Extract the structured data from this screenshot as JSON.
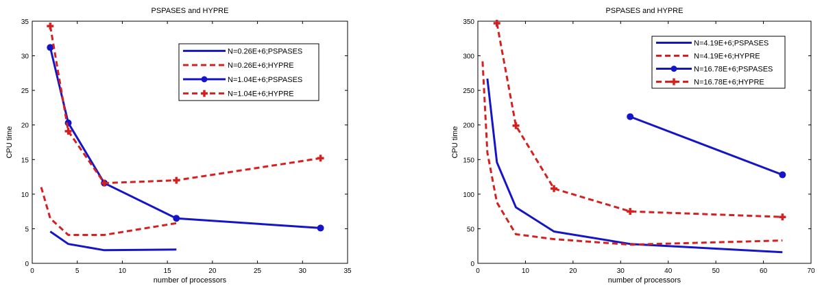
{
  "chart_data": [
    {
      "type": "line",
      "title": "PSPASES and HYPRE",
      "xlabel": "number of processors",
      "ylabel": "CPU time",
      "xlim": [
        0,
        35
      ],
      "ylim": [
        0,
        35
      ],
      "xticks": [
        0,
        5,
        10,
        15,
        20,
        25,
        30,
        35
      ],
      "yticks": [
        0,
        5,
        10,
        15,
        20,
        25,
        30,
        35
      ],
      "grid": false,
      "legend_position": "top-right",
      "series": [
        {
          "name": "N=0.26E+6;PSPASES",
          "color": "#1515c8",
          "style": "solid",
          "marker": "none",
          "x": [
            2,
            4,
            8,
            16
          ],
          "y": [
            4.6,
            2.8,
            1.9,
            2.0
          ]
        },
        {
          "name": "N=0.26E+6;HYPRE",
          "color": "#d42020",
          "style": "dashed",
          "marker": "none",
          "x": [
            1,
            2,
            4,
            8,
            16
          ],
          "y": [
            11.0,
            6.5,
            4.1,
            4.1,
            5.8
          ]
        },
        {
          "name": "N=1.04E+6;PSPASES",
          "color": "#1515c8",
          "style": "solid",
          "marker": "circle",
          "x": [
            2,
            4,
            8,
            16,
            32
          ],
          "y": [
            31.2,
            20.3,
            11.6,
            6.5,
            5.1
          ]
        },
        {
          "name": "N=1.04E+6;HYPRE",
          "color": "#d42020",
          "style": "dashed",
          "marker": "plus",
          "x": [
            2,
            4,
            8,
            16,
            32
          ],
          "y": [
            34.3,
            19.1,
            11.6,
            12.0,
            15.2
          ]
        }
      ]
    },
    {
      "type": "line",
      "title": "PSPASES and HYPRE",
      "xlabel": "number of processors",
      "ylabel": "CPU time",
      "xlim": [
        0,
        70
      ],
      "ylim": [
        0,
        350
      ],
      "xticks": [
        0,
        10,
        20,
        30,
        40,
        50,
        60,
        70
      ],
      "yticks": [
        0,
        50,
        100,
        150,
        200,
        250,
        300,
        350
      ],
      "grid": false,
      "legend_position": "top-right",
      "series": [
        {
          "name": "N=4.19E+6;PSPASES",
          "color": "#1515c8",
          "style": "solid",
          "marker": "none",
          "x": [
            2,
            4,
            8,
            16,
            32,
            64
          ],
          "y": [
            267,
            146,
            81,
            46,
            28,
            16
          ]
        },
        {
          "name": "N=4.19E+6;HYPRE",
          "color": "#d42020",
          "style": "dashed",
          "marker": "none",
          "x": [
            1,
            2,
            4,
            8,
            16,
            32,
            64
          ],
          "y": [
            292,
            160,
            88,
            42,
            35,
            27,
            33
          ]
        },
        {
          "name": "N=16.78E+6;PSPASES",
          "color": "#1515c8",
          "style": "solid",
          "marker": "circle",
          "x": [
            32,
            64
          ],
          "y": [
            212,
            128
          ]
        },
        {
          "name": "N=16.78E+6;HYPRE",
          "color": "#d42020",
          "style": "dashed",
          "marker": "plus",
          "x": [
            4,
            8,
            16,
            32,
            64
          ],
          "y": [
            347,
            199,
            108,
            75,
            67
          ]
        }
      ]
    }
  ]
}
